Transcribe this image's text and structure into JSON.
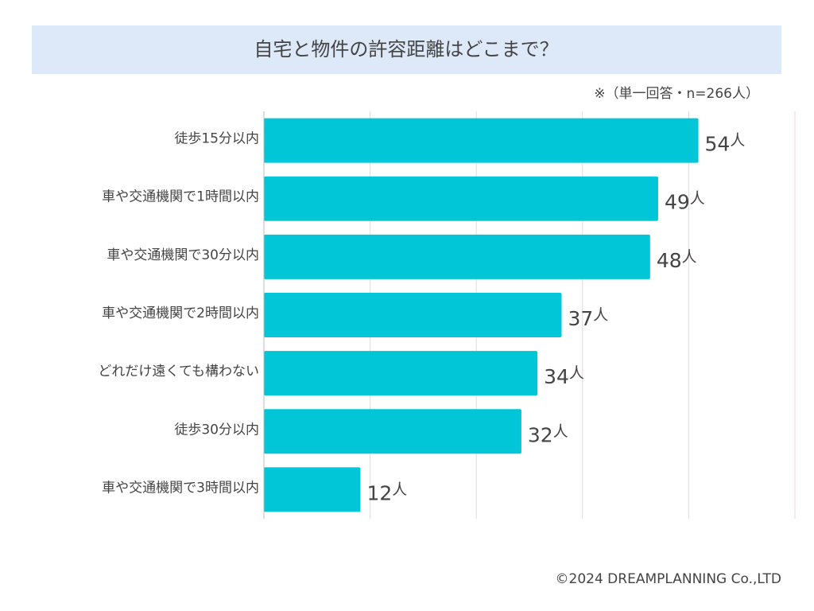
{
  "chart_data": {
    "type": "bar",
    "orientation": "horizontal",
    "title": "自宅と物件の許容距離はどこまで？",
    "subtitle": "※（単一回答・n=266人）",
    "categories": [
      "徒歩15分以内",
      "車や交通機関で1時間以内",
      "車や交通機関で30分以内",
      "車や交通機関で2時間以内",
      "どれだけ遠くても構わない",
      "徒歩30分以内",
      "車や交通機関で3時間以内"
    ],
    "values": [
      54,
      49,
      48,
      37,
      34,
      32,
      12
    ],
    "value_unit": "人",
    "color": "#00c6d7",
    "xlim": [
      0,
      66
    ],
    "grid": true,
    "footer": "©2024 DREAMPLANNING Co.,LTD"
  }
}
